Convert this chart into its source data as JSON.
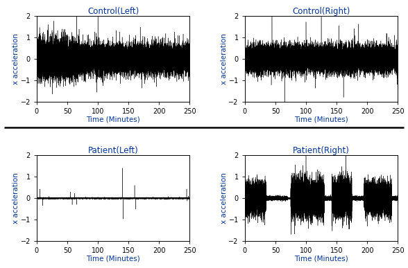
{
  "title_control_left": "Control(Left)",
  "title_control_right": "Control(Right)",
  "title_patient_left": "Patient(Left)",
  "title_patient_right": "Patient(Right)",
  "xlabel": "Time (Minutes)",
  "ylabel": "x acceleration",
  "xlim": [
    0,
    250
  ],
  "ylim": [
    -2,
    2
  ],
  "yticks": [
    -2,
    -1,
    0,
    1,
    2
  ],
  "xticks": [
    0,
    50,
    100,
    150,
    200,
    250
  ],
  "line_color": "#000000",
  "background_color": "#ffffff",
  "seed": 42,
  "n_points": 18000,
  "title_fontsize": 8.5,
  "label_fontsize": 7.5,
  "tick_fontsize": 7
}
